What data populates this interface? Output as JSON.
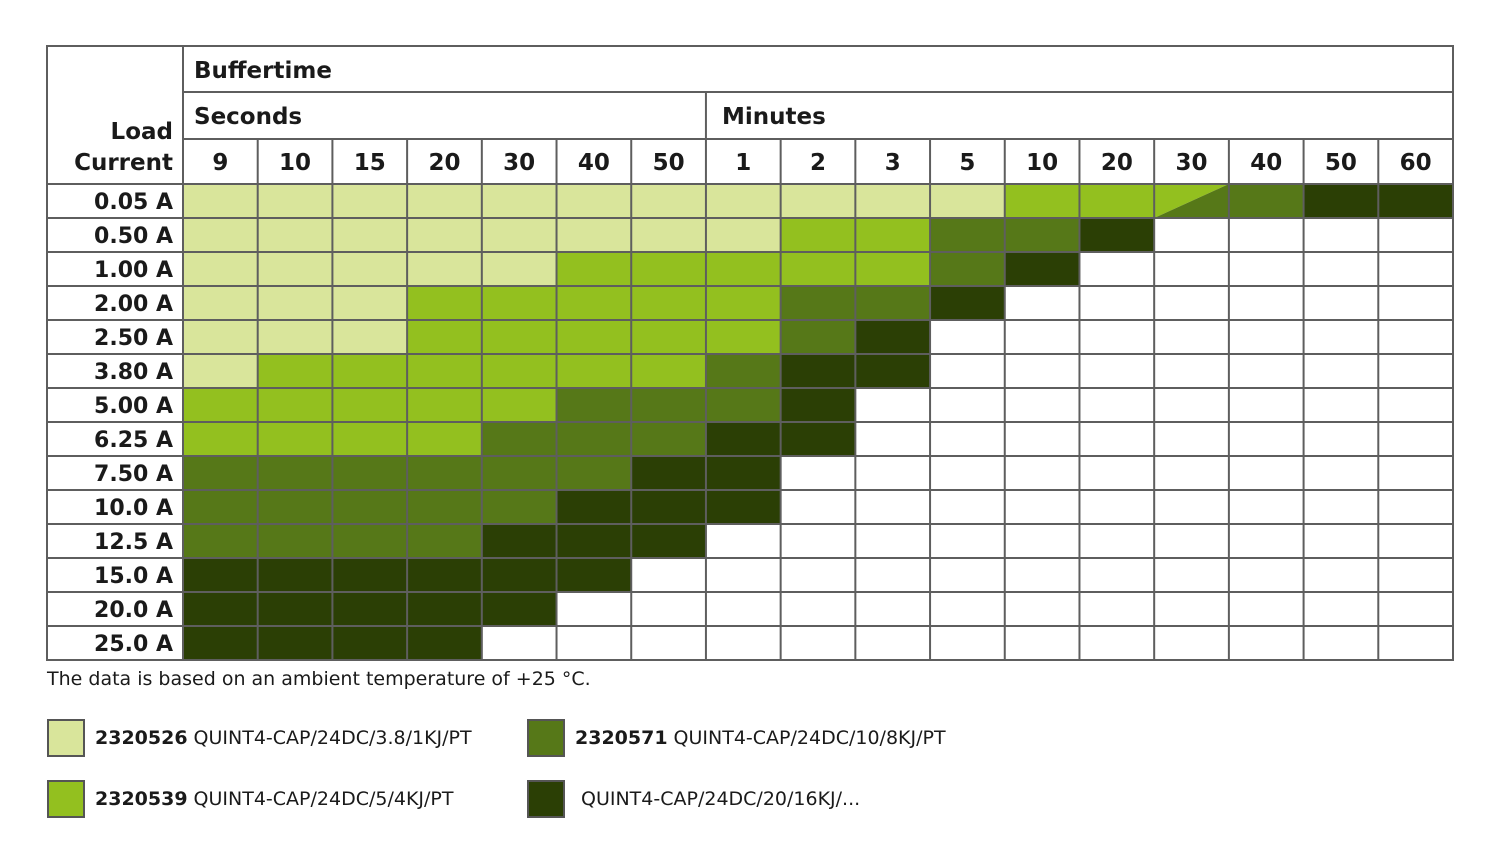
{
  "chart_data": {
    "type": "table",
    "header": {
      "corner_label_line1": "Load",
      "corner_label_line2": "Current",
      "buffertime": "Buffertime",
      "group_seconds": "Seconds",
      "group_minutes": "Minutes"
    },
    "columns": [
      "9",
      "10",
      "15",
      "20",
      "30",
      "40",
      "50",
      "1",
      "2",
      "3",
      "5",
      "10",
      "20",
      "30",
      "40",
      "50",
      "60"
    ],
    "rows": [
      "0.05 A",
      "0.50 A",
      "1.00 A",
      "2.00 A",
      "2.50 A",
      "3.80 A",
      "5.00 A",
      "6.25 A",
      "7.50 A",
      "10.0 A",
      "12.5 A",
      "15.0 A",
      "20.0 A",
      "25.0 A"
    ],
    "product_colors": [
      "#ffffff",
      "#d9e59b",
      "#93c01f",
      "#567818",
      "#2b3f05"
    ],
    "cells": [
      [
        1,
        1,
        1,
        1,
        1,
        1,
        1,
        1,
        1,
        1,
        1,
        2,
        2,
        "2/3",
        3,
        4,
        4
      ],
      [
        1,
        1,
        1,
        1,
        1,
        1,
        1,
        1,
        2,
        2,
        3,
        3,
        4,
        0,
        0,
        0,
        0
      ],
      [
        1,
        1,
        1,
        1,
        1,
        2,
        2,
        2,
        2,
        2,
        3,
        4,
        0,
        0,
        0,
        0,
        0
      ],
      [
        1,
        1,
        1,
        2,
        2,
        2,
        2,
        2,
        3,
        3,
        4,
        0,
        0,
        0,
        0,
        0,
        0
      ],
      [
        1,
        1,
        1,
        2,
        2,
        2,
        2,
        2,
        3,
        4,
        0,
        0,
        0,
        0,
        0,
        0,
        0
      ],
      [
        1,
        2,
        2,
        2,
        2,
        2,
        2,
        3,
        4,
        4,
        0,
        0,
        0,
        0,
        0,
        0,
        0
      ],
      [
        2,
        2,
        2,
        2,
        2,
        3,
        3,
        3,
        4,
        0,
        0,
        0,
        0,
        0,
        0,
        0,
        0
      ],
      [
        2,
        2,
        2,
        2,
        3,
        3,
        3,
        4,
        4,
        0,
        0,
        0,
        0,
        0,
        0,
        0,
        0
      ],
      [
        3,
        3,
        3,
        3,
        3,
        3,
        4,
        4,
        0,
        0,
        0,
        0,
        0,
        0,
        0,
        0,
        0
      ],
      [
        3,
        3,
        3,
        3,
        3,
        4,
        4,
        4,
        0,
        0,
        0,
        0,
        0,
        0,
        0,
        0,
        0
      ],
      [
        3,
        3,
        3,
        3,
        4,
        4,
        4,
        0,
        0,
        0,
        0,
        0,
        0,
        0,
        0,
        0,
        0
      ],
      [
        4,
        4,
        4,
        4,
        4,
        4,
        0,
        0,
        0,
        0,
        0,
        0,
        0,
        0,
        0,
        0,
        0
      ],
      [
        4,
        4,
        4,
        4,
        4,
        0,
        0,
        0,
        0,
        0,
        0,
        0,
        0,
        0,
        0,
        0,
        0
      ],
      [
        4,
        4,
        4,
        4,
        0,
        0,
        0,
        0,
        0,
        0,
        0,
        0,
        0,
        0,
        0,
        0,
        0
      ]
    ],
    "note": "The data is based on an ambient temperature of +25 °C.",
    "legend": [
      {
        "code": "2320526",
        "name": "QUINT4-CAP/24DC/3.8/1KJ/PT",
        "color": "#d9e59b"
      },
      {
        "code": "2320571",
        "name": "QUINT4-CAP/24DC/10/8KJ/PT",
        "color": "#567818"
      },
      {
        "code": "2320539",
        "name": "QUINT4-CAP/24DC/5/4KJ/PT",
        "color": "#93c01f"
      },
      {
        "code": "",
        "name": "QUINT4-CAP/24DC/20/16KJ/...",
        "color": "#2b3f05"
      }
    ]
  }
}
